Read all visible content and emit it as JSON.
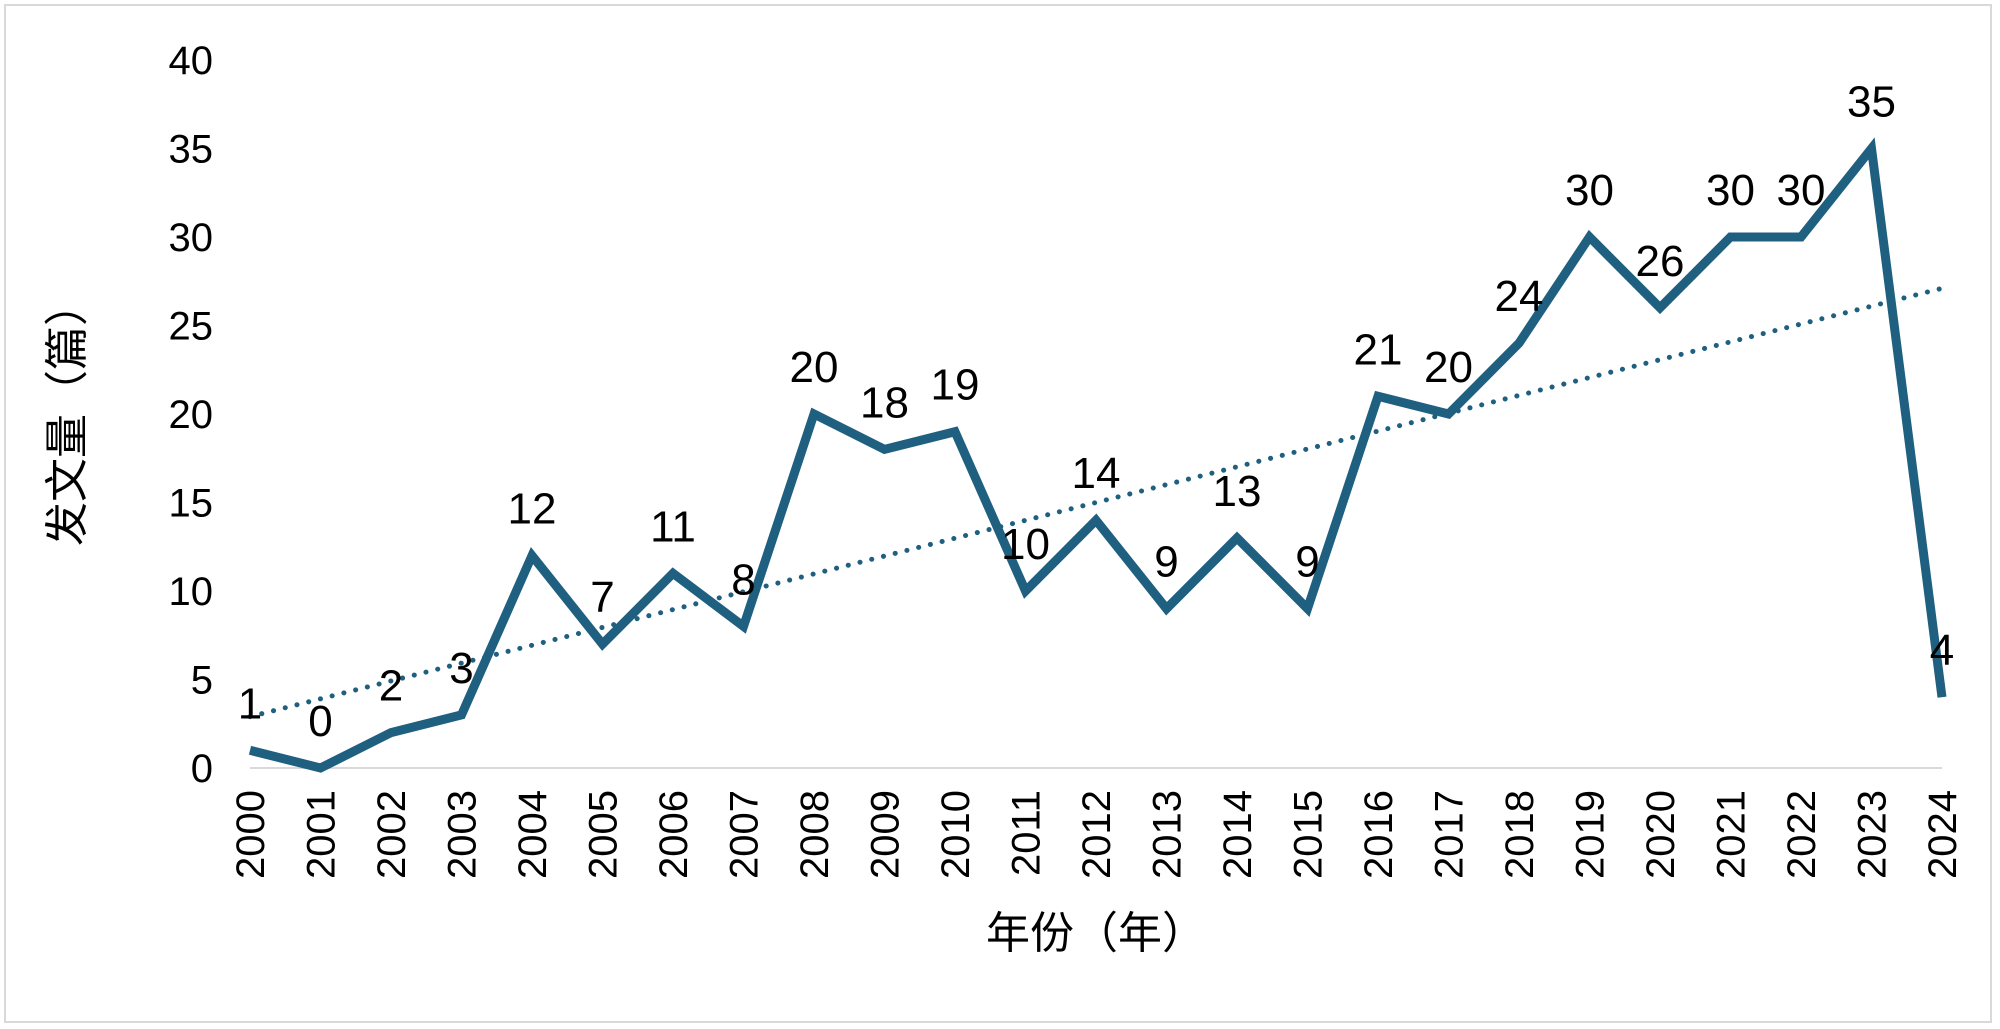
{
  "chart_data": {
    "type": "line",
    "title": "",
    "xlabel": "年份（年）",
    "ylabel": "发文量（篇）",
    "categories": [
      "2000",
      "2001",
      "2002",
      "2003",
      "2004",
      "2005",
      "2006",
      "2007",
      "2008",
      "2009",
      "2010",
      "2011",
      "2012",
      "2013",
      "2014",
      "2015",
      "2016",
      "2017",
      "2018",
      "2019",
      "2020",
      "2021",
      "2022",
      "2023",
      "2024"
    ],
    "series": [
      {
        "name": "发文量",
        "values": [
          1,
          0,
          2,
          3,
          12,
          7,
          11,
          8,
          20,
          18,
          19,
          10,
          14,
          9,
          13,
          9,
          21,
          20,
          24,
          30,
          26,
          30,
          30,
          35,
          4
        ],
        "color": "#1f5f80",
        "data_labels": true
      }
    ],
    "trendline": {
      "type": "linear",
      "style": "dotted",
      "color": "#1f5f80",
      "start": 2.9,
      "end": 27.1
    },
    "ylim": [
      0,
      40
    ],
    "yticks": [
      0,
      5,
      10,
      15,
      20,
      25,
      30,
      35,
      40
    ],
    "grid": false,
    "legend": "none"
  }
}
